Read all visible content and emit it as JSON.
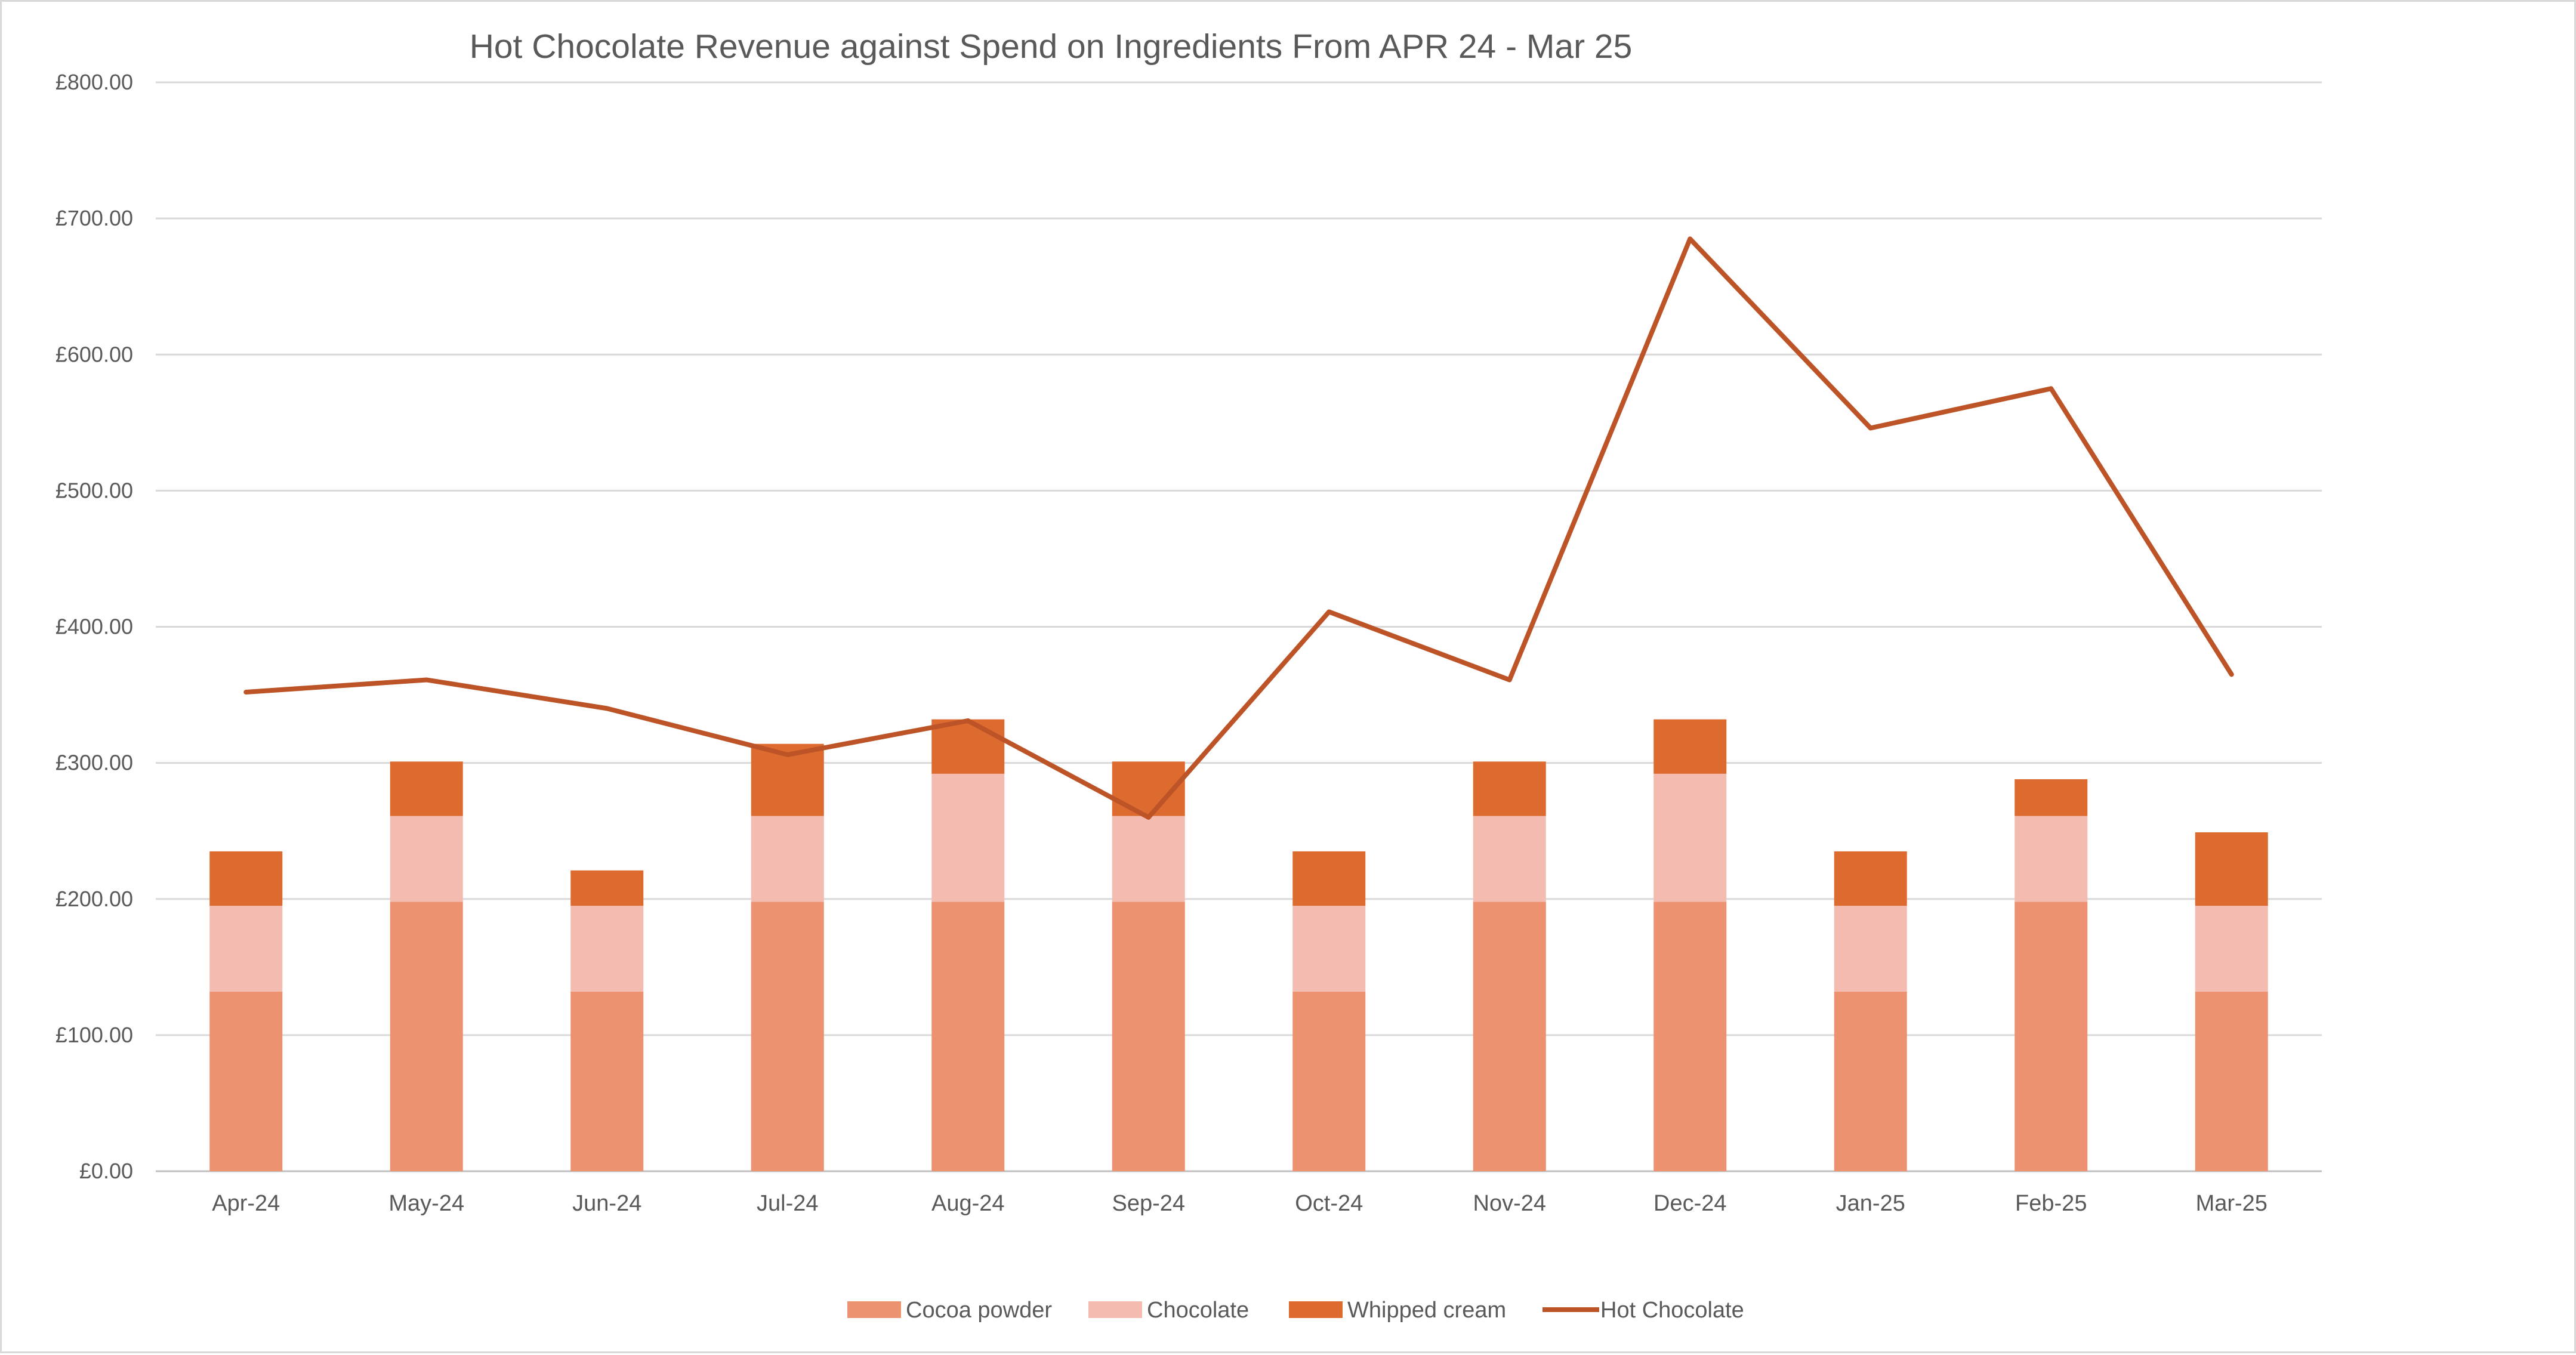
{
  "chart_data": {
    "type": "bar",
    "stacked": true,
    "title": "Hot Chocolate Revenue against Spend on Ingredients  From APR 24 - Mar 25",
    "xlabel": "",
    "ylabel": "",
    "ylim": [
      0,
      800
    ],
    "y_ticks": [
      0,
      100,
      200,
      300,
      400,
      500,
      600,
      700,
      800
    ],
    "y_tick_labels": [
      "£0.00",
      "£100.00",
      "£200.00",
      "£300.00",
      "£400.00",
      "£500.00",
      "£600.00",
      "£700.00",
      "£800.00"
    ],
    "grid": true,
    "legend_position": "bottom",
    "categories": [
      "Apr-24",
      "May-24",
      "Jun-24",
      "Jul-24",
      "Aug-24",
      "Sep-24",
      "Oct-24",
      "Nov-24",
      "Dec-24",
      "Jan-25",
      "Feb-25",
      "Mar-25"
    ],
    "series": [
      {
        "name": "Cocoa powder",
        "type": "bar",
        "color": "#ed9271",
        "values": [
          132,
          198,
          132,
          198,
          198,
          198,
          132,
          198,
          198,
          132,
          198,
          132
        ]
      },
      {
        "name": "Chocolate",
        "type": "bar",
        "color": "#f4bcb0",
        "values": [
          63,
          63,
          63,
          63,
          94,
          63,
          63,
          63,
          94,
          63,
          63,
          63
        ]
      },
      {
        "name": "Whipped cream",
        "type": "bar",
        "color": "#dd6b30",
        "values": [
          40,
          40,
          26,
          53,
          40,
          40,
          40,
          40,
          40,
          40,
          27,
          54
        ]
      },
      {
        "name": "Hot Chocolate",
        "type": "line",
        "color": "#bd5427",
        "values": [
          352,
          361,
          340,
          306,
          331,
          260,
          411,
          361,
          685,
          546,
          575,
          365
        ]
      }
    ]
  }
}
